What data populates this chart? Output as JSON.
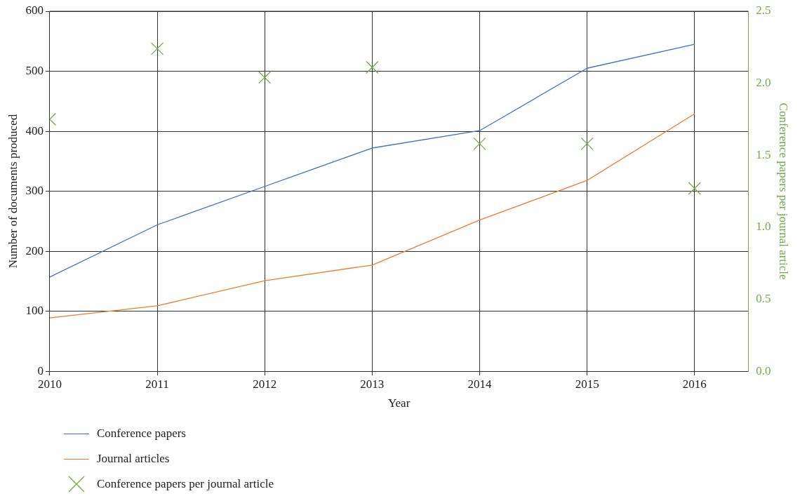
{
  "chart_data": {
    "type": "line",
    "xlabel": "Year",
    "ylabel": "Number of documents produced",
    "y2label": "Conference papers per journal article",
    "x": [
      2010,
      2011,
      2012,
      2013,
      2014,
      2015,
      2016
    ],
    "series": [
      {
        "name": "Conference papers",
        "color": "#4472c4",
        "values": [
          157,
          244,
          308,
          372,
          401,
          505,
          545
        ]
      },
      {
        "name": "Journal articles",
        "color": "#ed7d31",
        "values": [
          89,
          109,
          151,
          177,
          252,
          318,
          429
        ]
      },
      {
        "name": "Conference papers per journal article",
        "type": "scatter",
        "axis": "y2",
        "marker": "cross",
        "color": "#70ad47",
        "values": [
          1.75,
          2.24,
          2.04,
          2.11,
          1.58,
          1.58,
          1.27
        ]
      }
    ],
    "xlim": [
      2010,
      2016.5
    ],
    "xticks": [
      2010,
      2011,
      2012,
      2013,
      2014,
      2015,
      2016
    ],
    "ylim": [
      0,
      600
    ],
    "yticks": [
      0,
      100,
      200,
      300,
      400,
      500,
      600
    ],
    "y2lim": [
      0,
      2.5
    ],
    "y2ticks": [
      {
        "value": 0,
        "label": "0.0"
      },
      {
        "value": 0.5,
        "label": "0.5"
      },
      {
        "value": 1,
        "label": "1.0"
      },
      {
        "value": 1.5,
        "label": "1.5"
      },
      {
        "value": 2,
        "label": "2.0"
      },
      {
        "value": 2.5,
        "label": "2.5"
      }
    ],
    "grid": true,
    "legend": "bottom",
    "line_style": "solid"
  }
}
